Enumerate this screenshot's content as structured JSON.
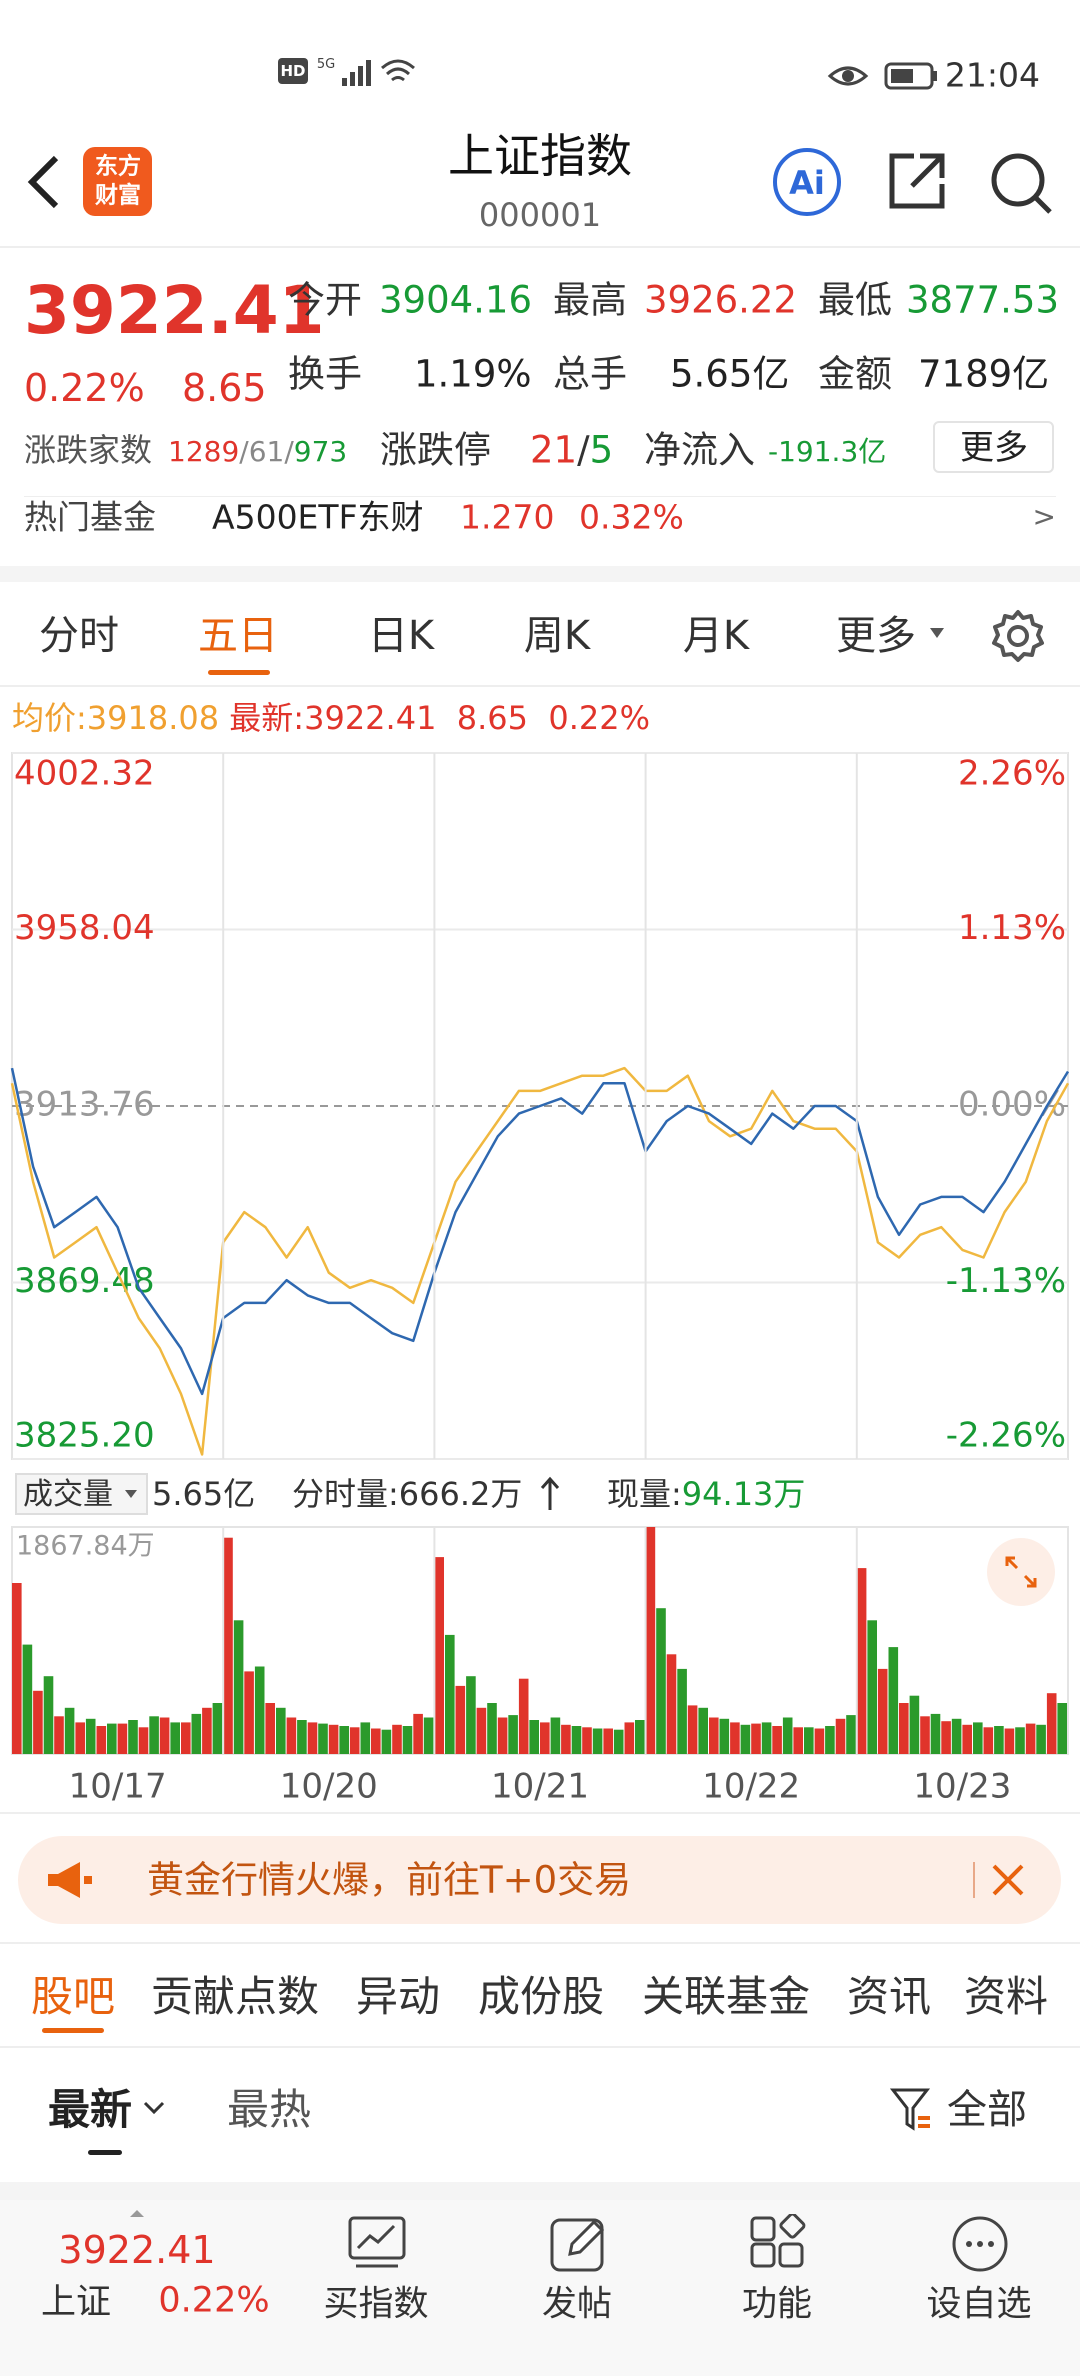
{
  "status_bar": {
    "time": "21:04"
  },
  "header": {
    "logo": [
      "东方",
      "财富"
    ],
    "title": "上证指数",
    "code": "000001"
  },
  "quote": {
    "price": "3922.41",
    "change_pct": "0.22%",
    "change": "8.65",
    "stats": [
      {
        "label": "今开",
        "value": "3904.16"
      },
      {
        "label": "最高",
        "value": "3926.22"
      },
      {
        "label": "最低",
        "value": "3877.53"
      },
      {
        "label": "换手",
        "value": "1.19%"
      },
      {
        "label": "总手",
        "value": "5.65亿"
      },
      {
        "label": "金额",
        "value": "7189亿"
      }
    ],
    "separator": "/",
    "breadth": {
      "label": "涨跌家数",
      "up": "1289",
      "flat": "61",
      "down": "973"
    },
    "limits": {
      "label": "涨跌停",
      "up": "21",
      "down": "5"
    },
    "net_inflow": {
      "label": "净流入",
      "value": "-191.3亿"
    },
    "more": "更多"
  },
  "hot_fund": {
    "label": "热门基金",
    "name": "A500ETF东财",
    "price": "1.270",
    "change": "0.32%",
    "arrow": ">"
  },
  "period_tabs": {
    "items": [
      "分时",
      "五日",
      "日K",
      "周K",
      "月K",
      "更多"
    ],
    "selected": 1
  },
  "chart_info": {
    "avg_label": "均价:",
    "avg": "3918.08",
    "last_label": "最新:",
    "last": "3922.41",
    "change": "8.65",
    "change_pct": "0.22%"
  },
  "volume_info": {
    "label": "成交量",
    "total": "5.65亿",
    "minute_label": "分时量:",
    "minute": "666.2万",
    "current_label": "现量:",
    "current": "94.13万"
  },
  "chart_data": [
    {
      "type": "line",
      "xlim": [
        0,
        5
      ],
      "x": [
        0,
        0.1,
        0.2,
        0.3,
        0.4,
        0.5,
        0.6,
        0.7,
        0.8,
        0.9,
        1,
        1.1,
        1.2,
        1.3,
        1.4,
        1.5,
        1.6,
        1.7,
        1.8,
        1.9,
        2,
        2.1,
        2.2,
        2.3,
        2.4,
        2.5,
        2.6,
        2.7,
        2.8,
        2.9,
        3,
        3.1,
        3.2,
        3.3,
        3.4,
        3.5,
        3.6,
        3.7,
        3.8,
        3.9,
        4,
        4.1,
        4.2,
        4.3,
        4.4,
        4.5,
        4.6,
        4.7,
        4.8,
        4.9,
        5
      ],
      "ylim": [
        3825.2,
        4002.32
      ],
      "yticks": [
        4002.32,
        3958.04,
        3913.76,
        3869.48,
        {
          "value": 3825.2,
          "label": "3825.20"
        }
      ],
      "y2lim": [
        -2.26,
        2.26
      ],
      "y2ticks": [
        {
          "value": 2.26,
          "label": "2.26%"
        },
        {
          "value": 1.13,
          "label": "1.13%"
        },
        {
          "value": 0,
          "label": "0.00%"
        },
        {
          "value": -1.13,
          "label": "-1.13%"
        },
        {
          "value": -2.26,
          "label": "-2.26%"
        }
      ],
      "grid": true,
      "series": [
        {
          "color": "#f0b840",
          "values": [
            3919.46,
            3894.75,
            3875.75,
            3879.55,
            3883.35,
            3871.95,
            3860.55,
            3852.94,
            3841.54,
            3826.34,
            3879.55,
            3887.15,
            3883.35,
            3875.75,
            3883.35,
            3871.95,
            3868.15,
            3870.05,
            3868.15,
            3864.35,
            3879.55,
            3894.75,
            3902.36,
            3909.96,
            3917.56,
            3917.56,
            3919.46,
            3921.36,
            3921.36,
            3923.26,
            3917.56,
            3917.56,
            3921.36,
            3909.96,
            3906.16,
            3908.06,
            3917.56,
            3909.96,
            3908.06,
            3908.06,
            3902.36,
            3879.55,
            3875.75,
            3881.45,
            3883.35,
            3877.65,
            3875.75,
            3887.15,
            3894.75,
            3909.96,
            3919.46
          ]
        },
        {
          "color": "#2e68b0",
          "values": [
            3923.26,
            3898.56,
            3883.35,
            3887.15,
            3890.95,
            3883.35,
            3868.15,
            3860.55,
            3852.94,
            3841.54,
            3860.55,
            3864.35,
            3864.35,
            3870.05,
            3866.25,
            3864.35,
            3864.35,
            3860.55,
            3856.75,
            3854.85,
            3871.95,
            3887.15,
            3896.65,
            3906.16,
            3911.86,
            3913.76,
            3915.66,
            3911.86,
            3919.46,
            3919.46,
            3902.36,
            3909.96,
            3913.76,
            3911.86,
            3908.06,
            3904.26,
            3911.86,
            3908.06,
            3913.76,
            3913.76,
            3909.96,
            3890.95,
            3881.45,
            3889.05,
            3890.95,
            3890.95,
            3887.15,
            3894.75,
            3904.26,
            3913.76,
            3922.41
          ]
        }
      ]
    },
    {
      "type": "bar",
      "xlim": [
        0,
        5
      ],
      "x": [
        0,
        0.1,
        0.2,
        0.3,
        0.4,
        0.5,
        0.6,
        0.7,
        0.8,
        0.9,
        1,
        1.1,
        1.2,
        1.3,
        1.4,
        1.5,
        1.6,
        1.7,
        1.8,
        1.9,
        2,
        2.1,
        2.2,
        2.3,
        2.4,
        2.5,
        2.6,
        2.7,
        2.8,
        2.9,
        3,
        3.1,
        3.2,
        3.3,
        3.4,
        3.5,
        3.6,
        3.7,
        3.8,
        3.9,
        4,
        4.1,
        4.2,
        4.3,
        4.4,
        4.5,
        4.6,
        4.7,
        4.8,
        4.9
      ],
      "xticks": [
        {
          "value": 0.5,
          "label": "10/17"
        },
        {
          "value": 1.5,
          "label": "10/20"
        },
        {
          "value": 2.5,
          "label": "10/21"
        },
        {
          "value": 3.5,
          "label": "10/22"
        },
        {
          "value": 4.5,
          "label": "10/23"
        }
      ],
      "ylim": [
        0,
        1867.84
      ],
      "yticks": [
        {
          "value": 1867.84,
          "label": "1867.84万"
        }
      ],
      "series": [
        {
          "color": "#e0342b",
          "values": [
            1407,
            520,
            310,
            260,
            230,
            250,
            220,
            300,
            260,
            380,
            1780,
            680,
            420,
            300,
            260,
            240,
            220,
            210,
            240,
            330,
            1620,
            560,
            380,
            300,
            620,
            260,
            240,
            220,
            210,
            260,
            1867.84,
            820,
            400,
            300,
            260,
            250,
            230,
            220,
            210,
            290,
            1530,
            700,
            420,
            310,
            270,
            240,
            220,
            210,
            250,
            500
          ]
        },
        {
          "color": "#2b9a2b",
          "values": [
            900,
            640,
            380,
            290,
            250,
            280,
            310,
            260,
            330,
            420,
            1100,
            720,
            380,
            280,
            250,
            230,
            260,
            200,
            230,
            300,
            980,
            640,
            420,
            320,
            280,
            300,
            230,
            210,
            200,
            280,
            1200,
            700,
            380,
            290,
            240,
            260,
            300,
            220,
            230,
            320,
            1100,
            880,
            480,
            330,
            290,
            260,
            230,
            220,
            240,
            420
          ]
        }
      ]
    }
  ],
  "banner": {
    "text": "黄金行情火爆，前往T+0交易"
  },
  "content_tabs": {
    "items": [
      "股吧",
      "贡献点数",
      "异动",
      "成份股",
      "关联基金",
      "资讯",
      "资料"
    ],
    "selected": 0
  },
  "sort_tabs": {
    "items": [
      "最新",
      "最热"
    ],
    "selected": 0,
    "filter": "全部"
  },
  "bottom_bar": {
    "index_name": "上证",
    "price": "3922.41",
    "change_pct": "0.22%",
    "actions": [
      "买指数",
      "发帖",
      "功能",
      "设自选"
    ]
  }
}
